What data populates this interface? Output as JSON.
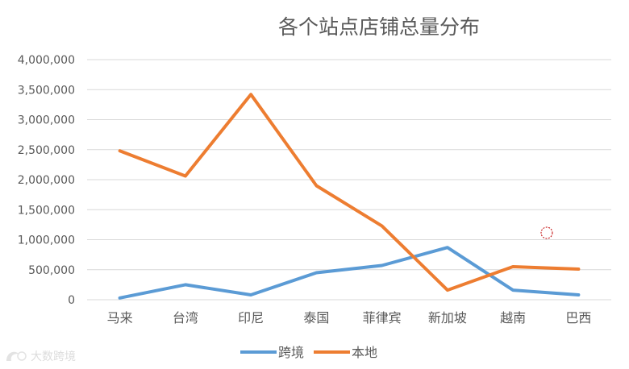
{
  "chart_data": {
    "type": "line",
    "title": "各个站点店铺总量分布",
    "categories": [
      "马来",
      "台湾",
      "印尼",
      "泰国",
      "菲律宾",
      "新加坡",
      "越南",
      "巴西"
    ],
    "series": [
      {
        "name": "跨境",
        "color": "#5b9bd5",
        "values": [
          30000,
          250000,
          80000,
          450000,
          570000,
          870000,
          160000,
          80000
        ]
      },
      {
        "name": "本地",
        "color": "#ed7d31",
        "values": [
          2480000,
          2060000,
          3420000,
          1900000,
          1230000,
          160000,
          550000,
          510000
        ]
      }
    ],
    "ylim": [
      0,
      4000000
    ],
    "ytick_labels": [
      "0",
      "500,000",
      "1,000,000",
      "1,500,000",
      "2,000,000",
      "2,500,000",
      "3,000,000",
      "3,500,000",
      "4,000,000"
    ],
    "grid": true,
    "legend": "bottom",
    "gridline_color": "#d9d9d9",
    "text_color": "#595959"
  },
  "watermark": {
    "text": "大数跨境",
    "icon": "logo-icon"
  }
}
